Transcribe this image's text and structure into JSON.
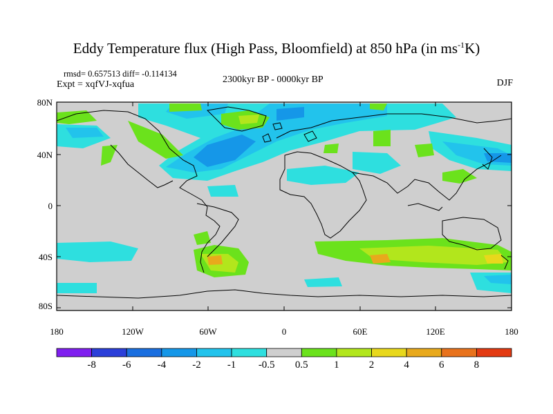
{
  "title": {
    "prefix": "Eddy Temperature flux (High Pass, Bloomfield) at 850 hPa (in ms",
    "exp": "-1",
    "suffix": "K)"
  },
  "stats": "rmsd= 0.657513 diff= -0.114134",
  "experiment": "Expt = xqfVJ-xqfua",
  "period": "2300kyr BP - 0000kyr BP",
  "season": "DJF",
  "lat_labels": [
    "80N",
    "40N",
    "0",
    "40S",
    "80S"
  ],
  "lon_labels": [
    "180",
    "120W",
    "60W",
    "0",
    "60E",
    "120E",
    "180"
  ],
  "colorbar": {
    "labels": [
      "-8",
      "-6",
      "-4",
      "-2",
      "-1",
      "-0.5",
      "0.5",
      "1",
      "2",
      "4",
      "6",
      "8"
    ],
    "colors": [
      "#7f1fef",
      "#2b3fd9",
      "#1a6fe0",
      "#1597e8",
      "#22c3ec",
      "#2edfdf",
      "#cfcfcf",
      "#6be21c",
      "#b2e61c",
      "#e8d81c",
      "#e8a91c",
      "#e8721c",
      "#e33a12"
    ]
  },
  "colors": {
    "land_background": "#cfcfcf",
    "coast": "#000000"
  }
}
